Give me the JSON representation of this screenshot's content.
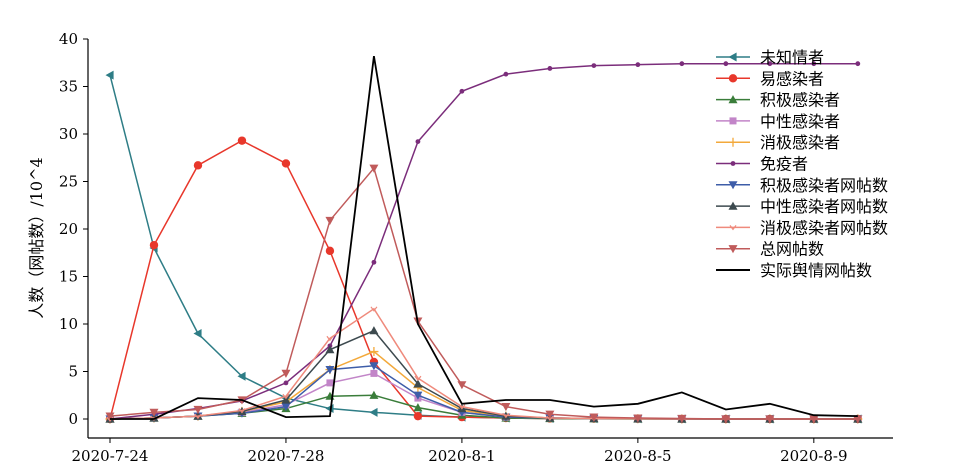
{
  "chart_data": {
    "type": "line",
    "title": "",
    "xlabel": "",
    "ylabel": "人数（网帖数）/10^4",
    "ylim": [
      0,
      40
    ],
    "yticks": [
      0,
      5,
      10,
      15,
      20,
      25,
      30,
      35,
      40
    ],
    "x": [
      0,
      1,
      2,
      3,
      4,
      5,
      6,
      7,
      8,
      9,
      10,
      11,
      12,
      13,
      14,
      15,
      16,
      17
    ],
    "xlim": [
      -0.5,
      17.8
    ],
    "xtick_positions": [
      0,
      4,
      8,
      12,
      16
    ],
    "xtick_labels": [
      "2020-7-24",
      "2020-7-28",
      "2020-8-1",
      "2020-8-5",
      "2020-8-9"
    ],
    "legend_position": "top-right",
    "grid": false,
    "series": [
      {
        "name": "未知情者",
        "color": "#2e7d86",
        "marker": "tri-left",
        "values": [
          36.2,
          18,
          9,
          4.5,
          2.2,
          1.1,
          0.7,
          0.4,
          0.2,
          0.1,
          0.05,
          0.03,
          0.02,
          0.01,
          0,
          0,
          0,
          0
        ]
      },
      {
        "name": "易感染者",
        "color": "#e8372b",
        "marker": "circle",
        "values": [
          0,
          18.3,
          26.7,
          29.3,
          26.9,
          17.7,
          6,
          0.3,
          0.2,
          0.1,
          0.05,
          0.03,
          0.02,
          0.01,
          0,
          0,
          0,
          0
        ]
      },
      {
        "name": "积极感染者",
        "color": "#3a7d3a",
        "marker": "tri-up",
        "values": [
          0,
          0.1,
          0.3,
          0.6,
          1.1,
          2.4,
          2.5,
          1.2,
          0.4,
          0.1,
          0.05,
          0.02,
          0,
          0,
          0,
          0,
          0,
          0
        ]
      },
      {
        "name": "中性感染者",
        "color": "#c285c8",
        "marker": "square",
        "values": [
          0,
          0.1,
          0.3,
          0.7,
          1.5,
          3.8,
          4.8,
          2.2,
          0.7,
          0.2,
          0.1,
          0.05,
          0.02,
          0,
          0,
          0,
          0,
          0
        ]
      },
      {
        "name": "消极感染者",
        "color": "#f3a93b",
        "marker": "plus",
        "values": [
          0,
          0.1,
          0.3,
          0.8,
          1.8,
          5.2,
          7.1,
          3.3,
          0.9,
          0.3,
          0.1,
          0.05,
          0.02,
          0,
          0,
          0,
          0,
          0
        ]
      },
      {
        "name": "免疫者",
        "color": "#7b2d7b",
        "marker": "dot",
        "values": [
          0,
          0.5,
          1.1,
          1.9,
          3.8,
          7.7,
          16.5,
          29.2,
          34.5,
          36.3,
          36.9,
          37.2,
          37.3,
          37.4,
          37.4,
          37.4,
          37.4,
          37.4
        ]
      },
      {
        "name": "积极感染者网帖数",
        "color": "#3e5da8",
        "marker": "tri-down",
        "values": [
          0,
          0.1,
          0.3,
          0.6,
          1.3,
          5.2,
          5.6,
          2.5,
          0.7,
          0.2,
          0.1,
          0.05,
          0.02,
          0,
          0,
          0,
          0,
          0
        ]
      },
      {
        "name": "中性感染者网帖数",
        "color": "#3d4a4f",
        "marker": "tri-up",
        "values": [
          0,
          0.1,
          0.3,
          0.8,
          2,
          7.3,
          9.3,
          3.7,
          1.1,
          0.3,
          0.1,
          0.05,
          0.02,
          0,
          0,
          0,
          0,
          0
        ]
      },
      {
        "name": "消极感染者网帖数",
        "color": "#ef8a7c",
        "marker": "tick",
        "values": [
          0,
          0.1,
          0.3,
          0.9,
          2.4,
          8.5,
          11.6,
          4.3,
          1.3,
          0.4,
          0.1,
          0.05,
          0.02,
          0,
          0,
          0,
          0,
          0
        ]
      },
      {
        "name": "总网帖数",
        "color": "#c05b5b",
        "marker": "tri-down",
        "values": [
          0.3,
          0.7,
          1,
          2,
          4.8,
          20.9,
          26.4,
          10.3,
          3.6,
          1.3,
          0.5,
          0.2,
          0.1,
          0.05,
          0,
          0,
          0,
          0
        ]
      },
      {
        "name": "实际舆情网帖数",
        "color": "#000000",
        "marker": "none",
        "values": [
          0,
          0,
          2.2,
          2,
          0.2,
          0.3,
          38.2,
          10,
          1.6,
          2,
          2,
          1.3,
          1.6,
          2.8,
          1,
          1.6,
          0.4,
          0.3
        ]
      }
    ]
  }
}
